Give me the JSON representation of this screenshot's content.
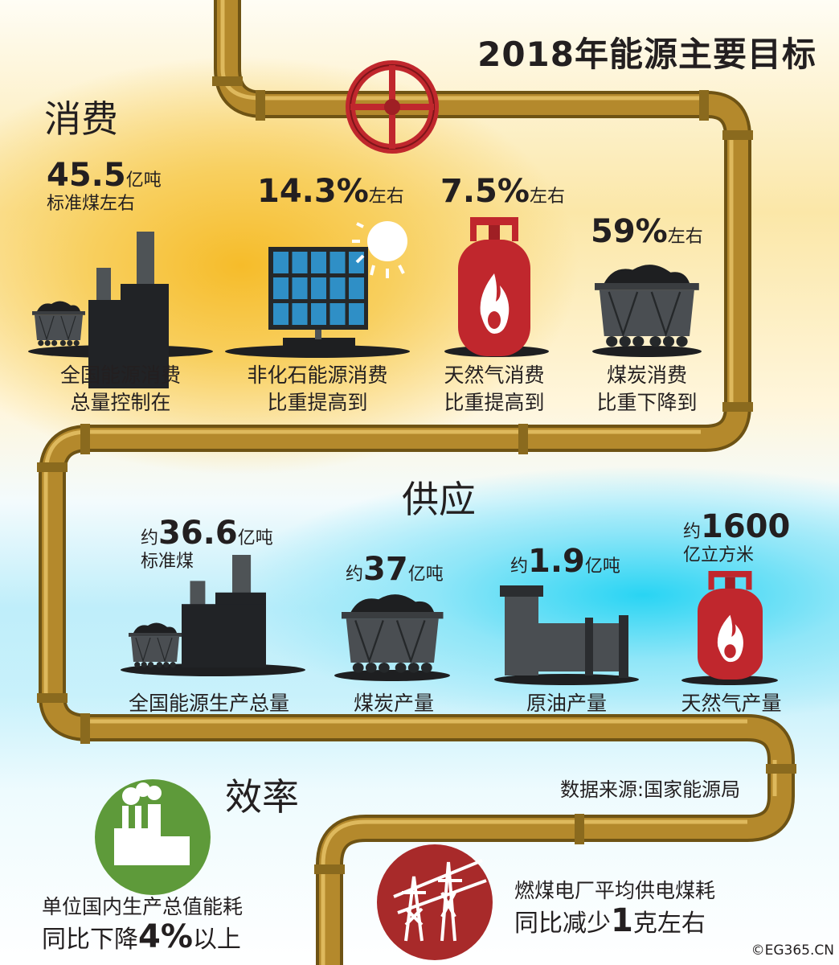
{
  "title": "2018年能源主要目标",
  "colors": {
    "pipe": "#b4892c",
    "valve": "#c0272d",
    "coal": "#2b2d30",
    "solar": "#2f8fc6",
    "cylinder": "#c0272d",
    "efficiency_green": "#5e9a3a",
    "power_red": "#a82a2a"
  },
  "consumption": {
    "heading": "消费",
    "items": [
      {
        "icon": "factory-icon",
        "value": "45.5",
        "unit": "亿吨",
        "sub": "标准煤左右",
        "label1": "全国能源消费",
        "label2": "总量控制在"
      },
      {
        "icon": "solar-panel-icon",
        "value": "14.3%",
        "unit": "左右",
        "label1": "非化石能源消费",
        "label2": "比重提高到"
      },
      {
        "icon": "gas-cylinder-icon",
        "value": "7.5%",
        "unit": "左右",
        "label1": "天然气消费",
        "label2": "比重提高到"
      },
      {
        "icon": "coal-cart-icon",
        "value": "59%",
        "unit": "左右",
        "label1": "煤炭消费",
        "label2": "比重下降到"
      }
    ]
  },
  "supply": {
    "heading": "供应",
    "items": [
      {
        "icon": "factory-icon",
        "prefix": "约",
        "value": "36.6",
        "unit": "亿吨",
        "sub": "标准煤",
        "label": "全国能源生产总量"
      },
      {
        "icon": "coal-cart-icon",
        "prefix": "约",
        "value": "37",
        "unit": "亿吨",
        "label": "煤炭产量"
      },
      {
        "icon": "oil-pipe-icon",
        "prefix": "约",
        "value": "1.9",
        "unit": "亿吨",
        "label": "原油产量"
      },
      {
        "icon": "gas-cylinder-icon",
        "prefix": "约",
        "value": "1600",
        "unit": "亿立方米",
        "label": "天然气产量"
      }
    ]
  },
  "efficiency": {
    "heading": "效率",
    "source": "数据来源:国家能源局",
    "gdp_line1": "单位国内生产总值能耗",
    "gdp_pre": "同比下降",
    "gdp_value": "4%",
    "gdp_post": "以上",
    "coal_line1": "燃煤电厂平均供电煤耗",
    "coal_pre": "同比减少",
    "coal_value": "1",
    "coal_post": "克左右"
  },
  "copyright": "©EG365.CN"
}
